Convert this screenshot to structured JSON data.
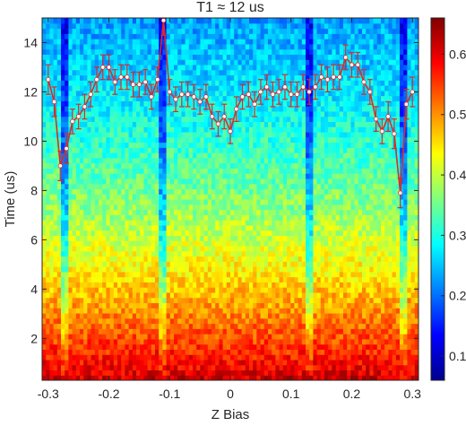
{
  "chart_data": {
    "type": "heatmap",
    "title": "T1 ≈ 12 us",
    "xlabel": "Z Bias",
    "ylabel": "Time (us)",
    "xlim": [
      -0.3,
      0.3
    ],
    "ylim": [
      0.3,
      15
    ],
    "x_ticks": [
      "-0.3",
      "-0.2",
      "-0.1",
      "0",
      "0.1",
      "0.2",
      "0.3"
    ],
    "y_ticks": [
      "2",
      "4",
      "6",
      "8",
      "10",
      "12",
      "14"
    ],
    "colorbar": {
      "range": [
        0.06,
        0.66
      ],
      "ticks": [
        "0.1",
        "0.2",
        "0.3",
        "0.4",
        "0.5",
        "0.6"
      ],
      "colormap": "jet"
    },
    "grid": false,
    "heatmap_summary": "Population decays from about 0.6 at short times to about 0.1 near 13-15 us; dark vertical stripes near -0.275, -0.11, 0.13 and 0.285 Z Bias",
    "dip_bias_values": [
      -0.275,
      -0.11,
      0.13,
      0.285
    ],
    "overlay_series": {
      "name": "T1",
      "color": "#d92b2b",
      "x": [
        -0.3,
        -0.29,
        -0.28,
        -0.27,
        -0.26,
        -0.25,
        -0.24,
        -0.23,
        -0.22,
        -0.21,
        -0.2,
        -0.19,
        -0.18,
        -0.17,
        -0.16,
        -0.15,
        -0.14,
        -0.13,
        -0.12,
        -0.11,
        -0.1,
        -0.09,
        -0.08,
        -0.07,
        -0.06,
        -0.05,
        -0.04,
        -0.03,
        -0.02,
        -0.01,
        0.0,
        0.01,
        0.02,
        0.03,
        0.04,
        0.05,
        0.06,
        0.07,
        0.08,
        0.09,
        0.1,
        0.11,
        0.12,
        0.13,
        0.14,
        0.15,
        0.16,
        0.17,
        0.18,
        0.19,
        0.2,
        0.21,
        0.22,
        0.23,
        0.24,
        0.25,
        0.26,
        0.27,
        0.28,
        0.29,
        0.3
      ],
      "y": [
        12.5,
        11.6,
        9.0,
        9.7,
        10.8,
        11.0,
        11.4,
        11.9,
        12.5,
        13.0,
        13.0,
        12.4,
        12.6,
        12.6,
        12.3,
        12.3,
        12.4,
        11.8,
        12.5,
        14.9,
        12.0,
        11.7,
        11.9,
        11.9,
        11.8,
        11.6,
        11.8,
        11.0,
        10.7,
        11.0,
        10.4,
        11.3,
        11.8,
        11.9,
        11.5,
        12.0,
        12.2,
        11.9,
        12.0,
        12.2,
        11.9,
        11.9,
        12.2,
        12.0,
        12.2,
        12.6,
        12.5,
        12.6,
        12.6,
        13.4,
        13.1,
        13.1,
        12.4,
        12.0,
        10.9,
        10.4,
        11.0,
        10.3,
        7.9,
        11.5,
        12.0
      ],
      "error": [
        0.6,
        0.6,
        0.6,
        0.6,
        0.5,
        0.5,
        0.5,
        0.5,
        0.5,
        0.5,
        0.5,
        0.5,
        0.5,
        0.5,
        0.5,
        0.5,
        0.5,
        0.5,
        0.5,
        0.6,
        0.5,
        0.5,
        0.5,
        0.5,
        0.5,
        0.5,
        0.5,
        0.5,
        0.5,
        0.5,
        0.5,
        0.5,
        0.5,
        0.5,
        0.5,
        0.5,
        0.5,
        0.5,
        0.5,
        0.5,
        0.5,
        0.5,
        0.5,
        0.5,
        0.5,
        0.5,
        0.5,
        0.5,
        0.5,
        0.5,
        0.5,
        0.5,
        0.5,
        0.5,
        0.5,
        0.5,
        0.6,
        0.6,
        0.6,
        0.6,
        0.6
      ]
    }
  }
}
